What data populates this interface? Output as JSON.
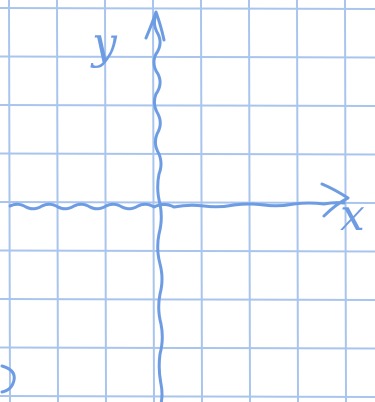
{
  "axes": {
    "y_label": "y",
    "x_label": "x"
  }
}
